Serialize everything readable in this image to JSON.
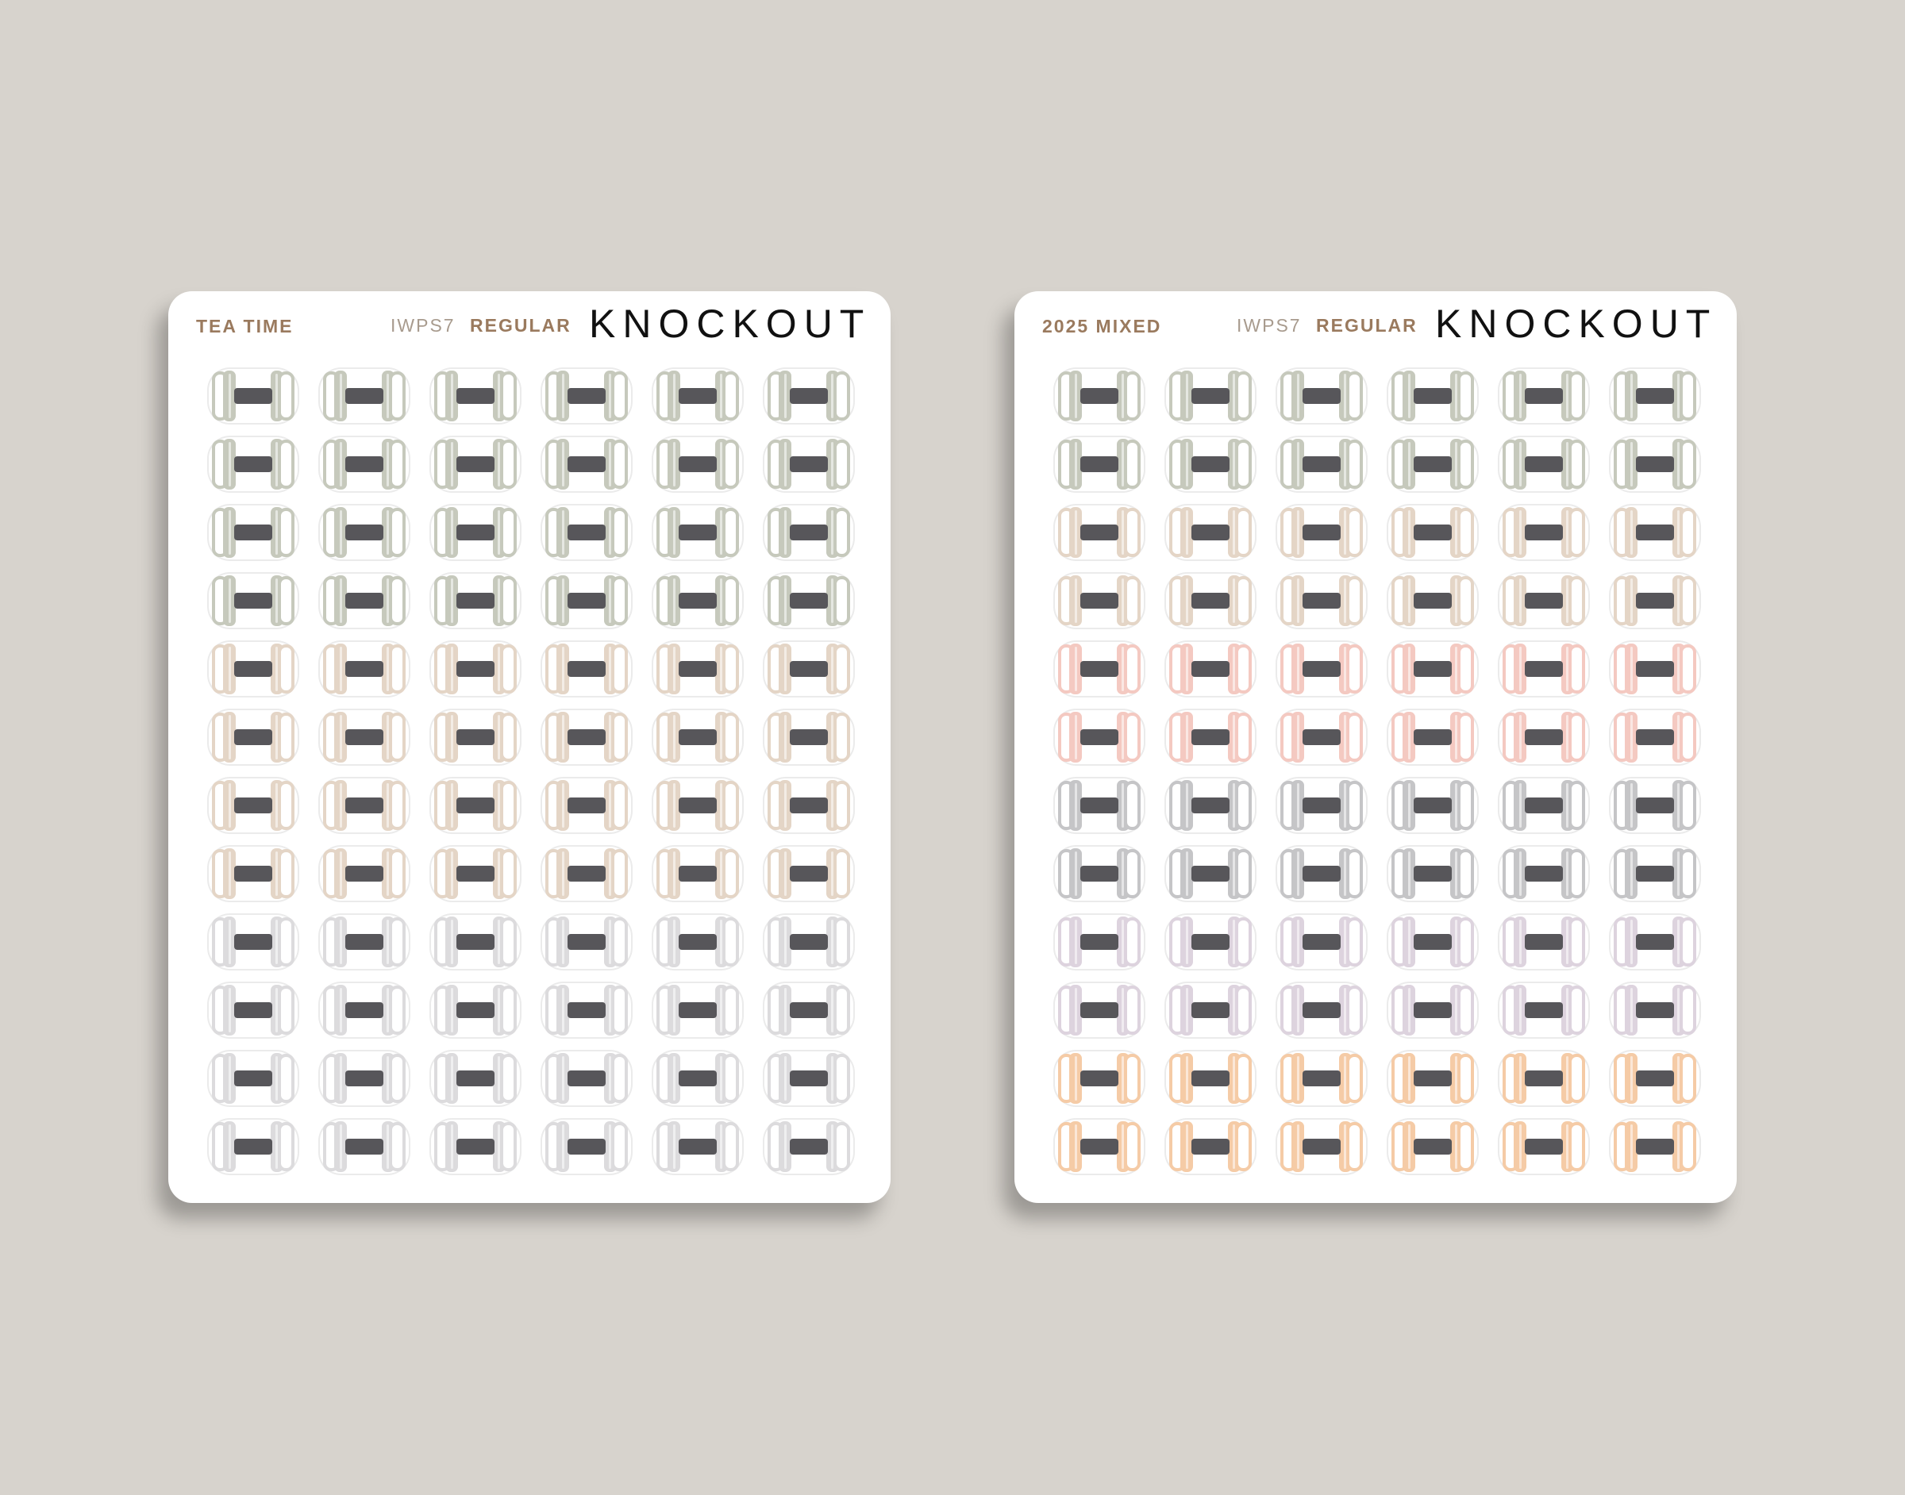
{
  "sheets": [
    {
      "name": "TEA TIME",
      "code": "IWPS7",
      "type": "REGULAR",
      "brand": "KNOCKOUT",
      "columns": 6,
      "row_colors": [
        "#c6c9bc",
        "#c6c9bc",
        "#c6c9bc",
        "#c6c9bc",
        "#e4d5c6",
        "#e4d5c6",
        "#e4d5c6",
        "#e4d5c6",
        "#dcdbdd",
        "#dcdbdd",
        "#dcdbdd",
        "#dcdbdd"
      ]
    },
    {
      "name": "2025 MIXED",
      "code": "IWPS7",
      "type": "REGULAR",
      "brand": "KNOCKOUT",
      "columns": 6,
      "row_colors": [
        "#c6c9bc",
        "#c6c9bc",
        "#e4d5c6",
        "#e4d5c6",
        "#f4c9c1",
        "#f4c9c1",
        "#c5c5c7",
        "#c5c5c7",
        "#ddd3de",
        "#ddd3de",
        "#f5cba6",
        "#f5cba6"
      ]
    }
  ],
  "sticker_icon": "dumbbell-icon",
  "bar_color": "#57565a"
}
